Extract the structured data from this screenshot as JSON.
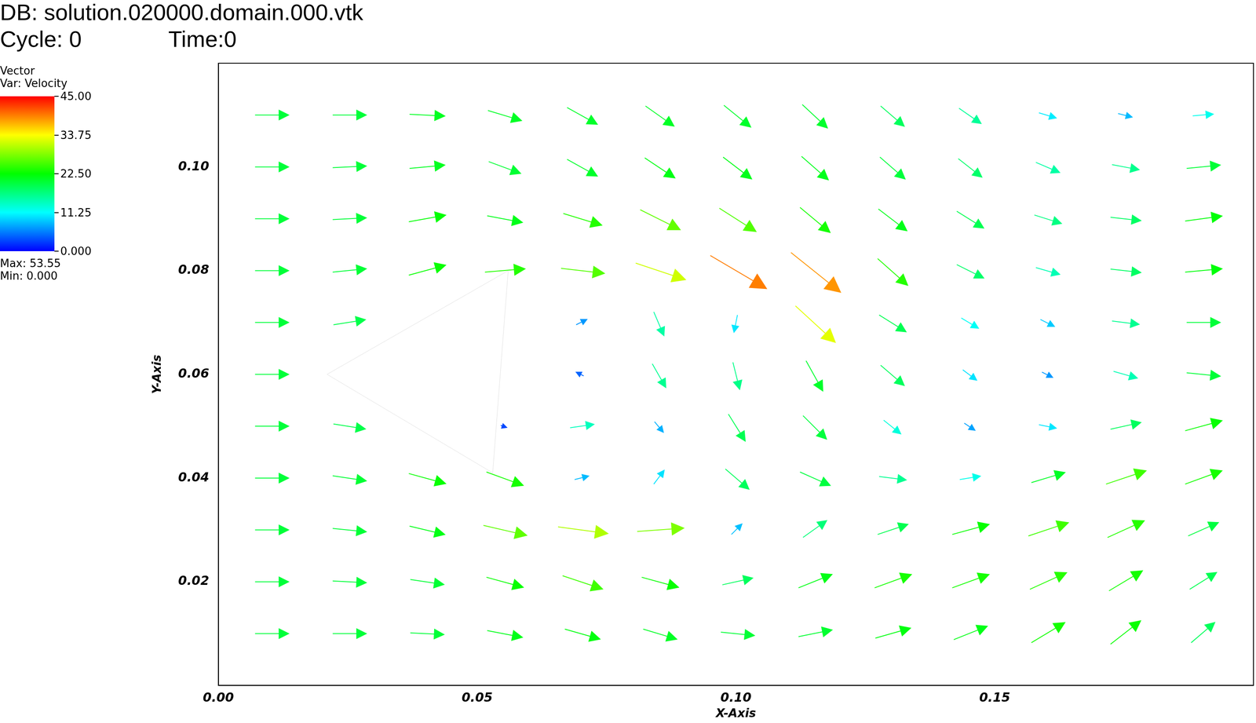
{
  "chart_data": {
    "type": "vector",
    "title": "DB: solution.020000.domain.000.vtk",
    "subtitle": [
      "Cycle: 0",
      "Time:0"
    ],
    "x_label": "X-Axis",
    "y_label": "Y-Axis",
    "xlim": [
      0,
      0.2
    ],
    "xticks": [
      {
        "value": 0,
        "label": "0.00"
      },
      {
        "value": 0.05,
        "label": "0.05"
      },
      {
        "value": 0.1,
        "label": "0.10"
      },
      {
        "value": 0.15,
        "label": "0.15"
      }
    ],
    "ylim": [
      0,
      0.12
    ],
    "yticks": [
      {
        "value": 0.02,
        "label": "0.02"
      },
      {
        "value": 0.04,
        "label": "0.04"
      },
      {
        "value": 0.06,
        "label": "0.06"
      },
      {
        "value": 0.08,
        "label": "0.08"
      },
      {
        "value": 0.1,
        "label": "0.10"
      }
    ],
    "grid": false,
    "obstacle": {
      "x": [
        0.021,
        0.056,
        0.053
      ],
      "y": [
        0.06,
        0.08,
        0.041
      ]
    },
    "vectors": {
      "x": [
        0.01,
        0.025,
        0.04,
        0.055,
        0.07,
        0.085,
        0.1,
        0.115,
        0.13,
        0.145,
        0.16,
        0.175,
        0.19
      ],
      "y": [
        0.11,
        0.1,
        0.09,
        0.08,
        0.07,
        0.06,
        0.05,
        0.04,
        0.03,
        0.02,
        0.01
      ],
      "u": [
        [
          20,
          20,
          21,
          20,
          18,
          17,
          16,
          15,
          14,
          13,
          10,
          8,
          12
        ],
        [
          20,
          20,
          21,
          19,
          18,
          18,
          17,
          16,
          15,
          14,
          14,
          16,
          20
        ],
        [
          20,
          20,
          22,
          21,
          23,
          24,
          22,
          18,
          17,
          16,
          16,
          18,
          22
        ],
        [
          20,
          20,
          22,
          24,
          26,
          30,
          34,
          30,
          18,
          16,
          14,
          18,
          22
        ],
        [
          20,
          19,
          null,
          null,
          6,
          6,
          -2,
          24,
          16,
          10,
          8,
          16,
          20
        ],
        [
          20,
          null,
          null,
          null,
          -4,
          8,
          4,
          10,
          14,
          8,
          6,
          14,
          20
        ],
        [
          20,
          19,
          null,
          3,
          14,
          5,
          10,
          14,
          10,
          6,
          10,
          18,
          22
        ],
        [
          20,
          20,
          22,
          22,
          8,
          6,
          14,
          18,
          16,
          12,
          20,
          24,
          22
        ],
        [
          20,
          20,
          21,
          26,
          30,
          28,
          6,
          14,
          18,
          22,
          24,
          22,
          18
        ],
        [
          20,
          20,
          20,
          22,
          24,
          22,
          18,
          20,
          22,
          22,
          22,
          20,
          16
        ],
        [
          20,
          20,
          20,
          21,
          21,
          20,
          20,
          20,
          21,
          20,
          20,
          18,
          14
        ]
      ],
      "v": [
        [
          0,
          0,
          -1,
          -6,
          -10,
          -12,
          -13,
          -14,
          -12,
          -9,
          -3,
          -2,
          1
        ],
        [
          0,
          1,
          2,
          -7,
          -10,
          -12,
          -13,
          -14,
          -13,
          -11,
          -6,
          -3,
          2
        ],
        [
          0,
          1,
          4,
          -4,
          -7,
          -12,
          -14,
          -15,
          -13,
          -10,
          -5,
          -2,
          3
        ],
        [
          0,
          2,
          6,
          2,
          -3,
          -10,
          -20,
          -24,
          -16,
          -8,
          -4,
          -2,
          2
        ],
        [
          0,
          3,
          null,
          null,
          3,
          -14,
          -10,
          -22,
          -10,
          -6,
          -4,
          -2,
          0
        ],
        [
          0,
          null,
          null,
          null,
          2,
          -14,
          -16,
          -18,
          -12,
          -6,
          -3,
          -4,
          -2
        ],
        [
          0,
          -3,
          null,
          -1,
          2,
          -6,
          -16,
          -14,
          -8,
          -4,
          -2,
          4,
          6
        ],
        [
          0,
          -3,
          -6,
          -8,
          2,
          8,
          -12,
          -8,
          -2,
          2,
          6,
          8,
          8
        ],
        [
          0,
          -2,
          -5,
          -6,
          -4,
          2,
          6,
          10,
          6,
          6,
          8,
          10,
          8
        ],
        [
          0,
          -1,
          -3,
          -6,
          -8,
          -6,
          4,
          8,
          8,
          8,
          10,
          12,
          10
        ],
        [
          0,
          0,
          -1,
          -4,
          -6,
          -6,
          -2,
          4,
          6,
          8,
          12,
          14,
          12
        ]
      ]
    },
    "colorbar": {
      "title": [
        "Vector",
        "Var: Velocity"
      ],
      "range": [
        0,
        45
      ],
      "ticks": [
        {
          "value": 0,
          "label": "0.000"
        },
        {
          "value": 11.25,
          "label": "11.25"
        },
        {
          "value": 22.5,
          "label": "22.50"
        },
        {
          "value": 33.75,
          "label": "33.75"
        },
        {
          "value": 45,
          "label": "45.00"
        }
      ],
      "colors": [
        "#0000ff",
        "#00ffff",
        "#00ff00",
        "#ffff00",
        "#ff0000"
      ],
      "max": {
        "value": 53.55,
        "label": "Max: 53.55"
      },
      "min": {
        "value": 0,
        "label": "Min: 0.000"
      }
    }
  }
}
